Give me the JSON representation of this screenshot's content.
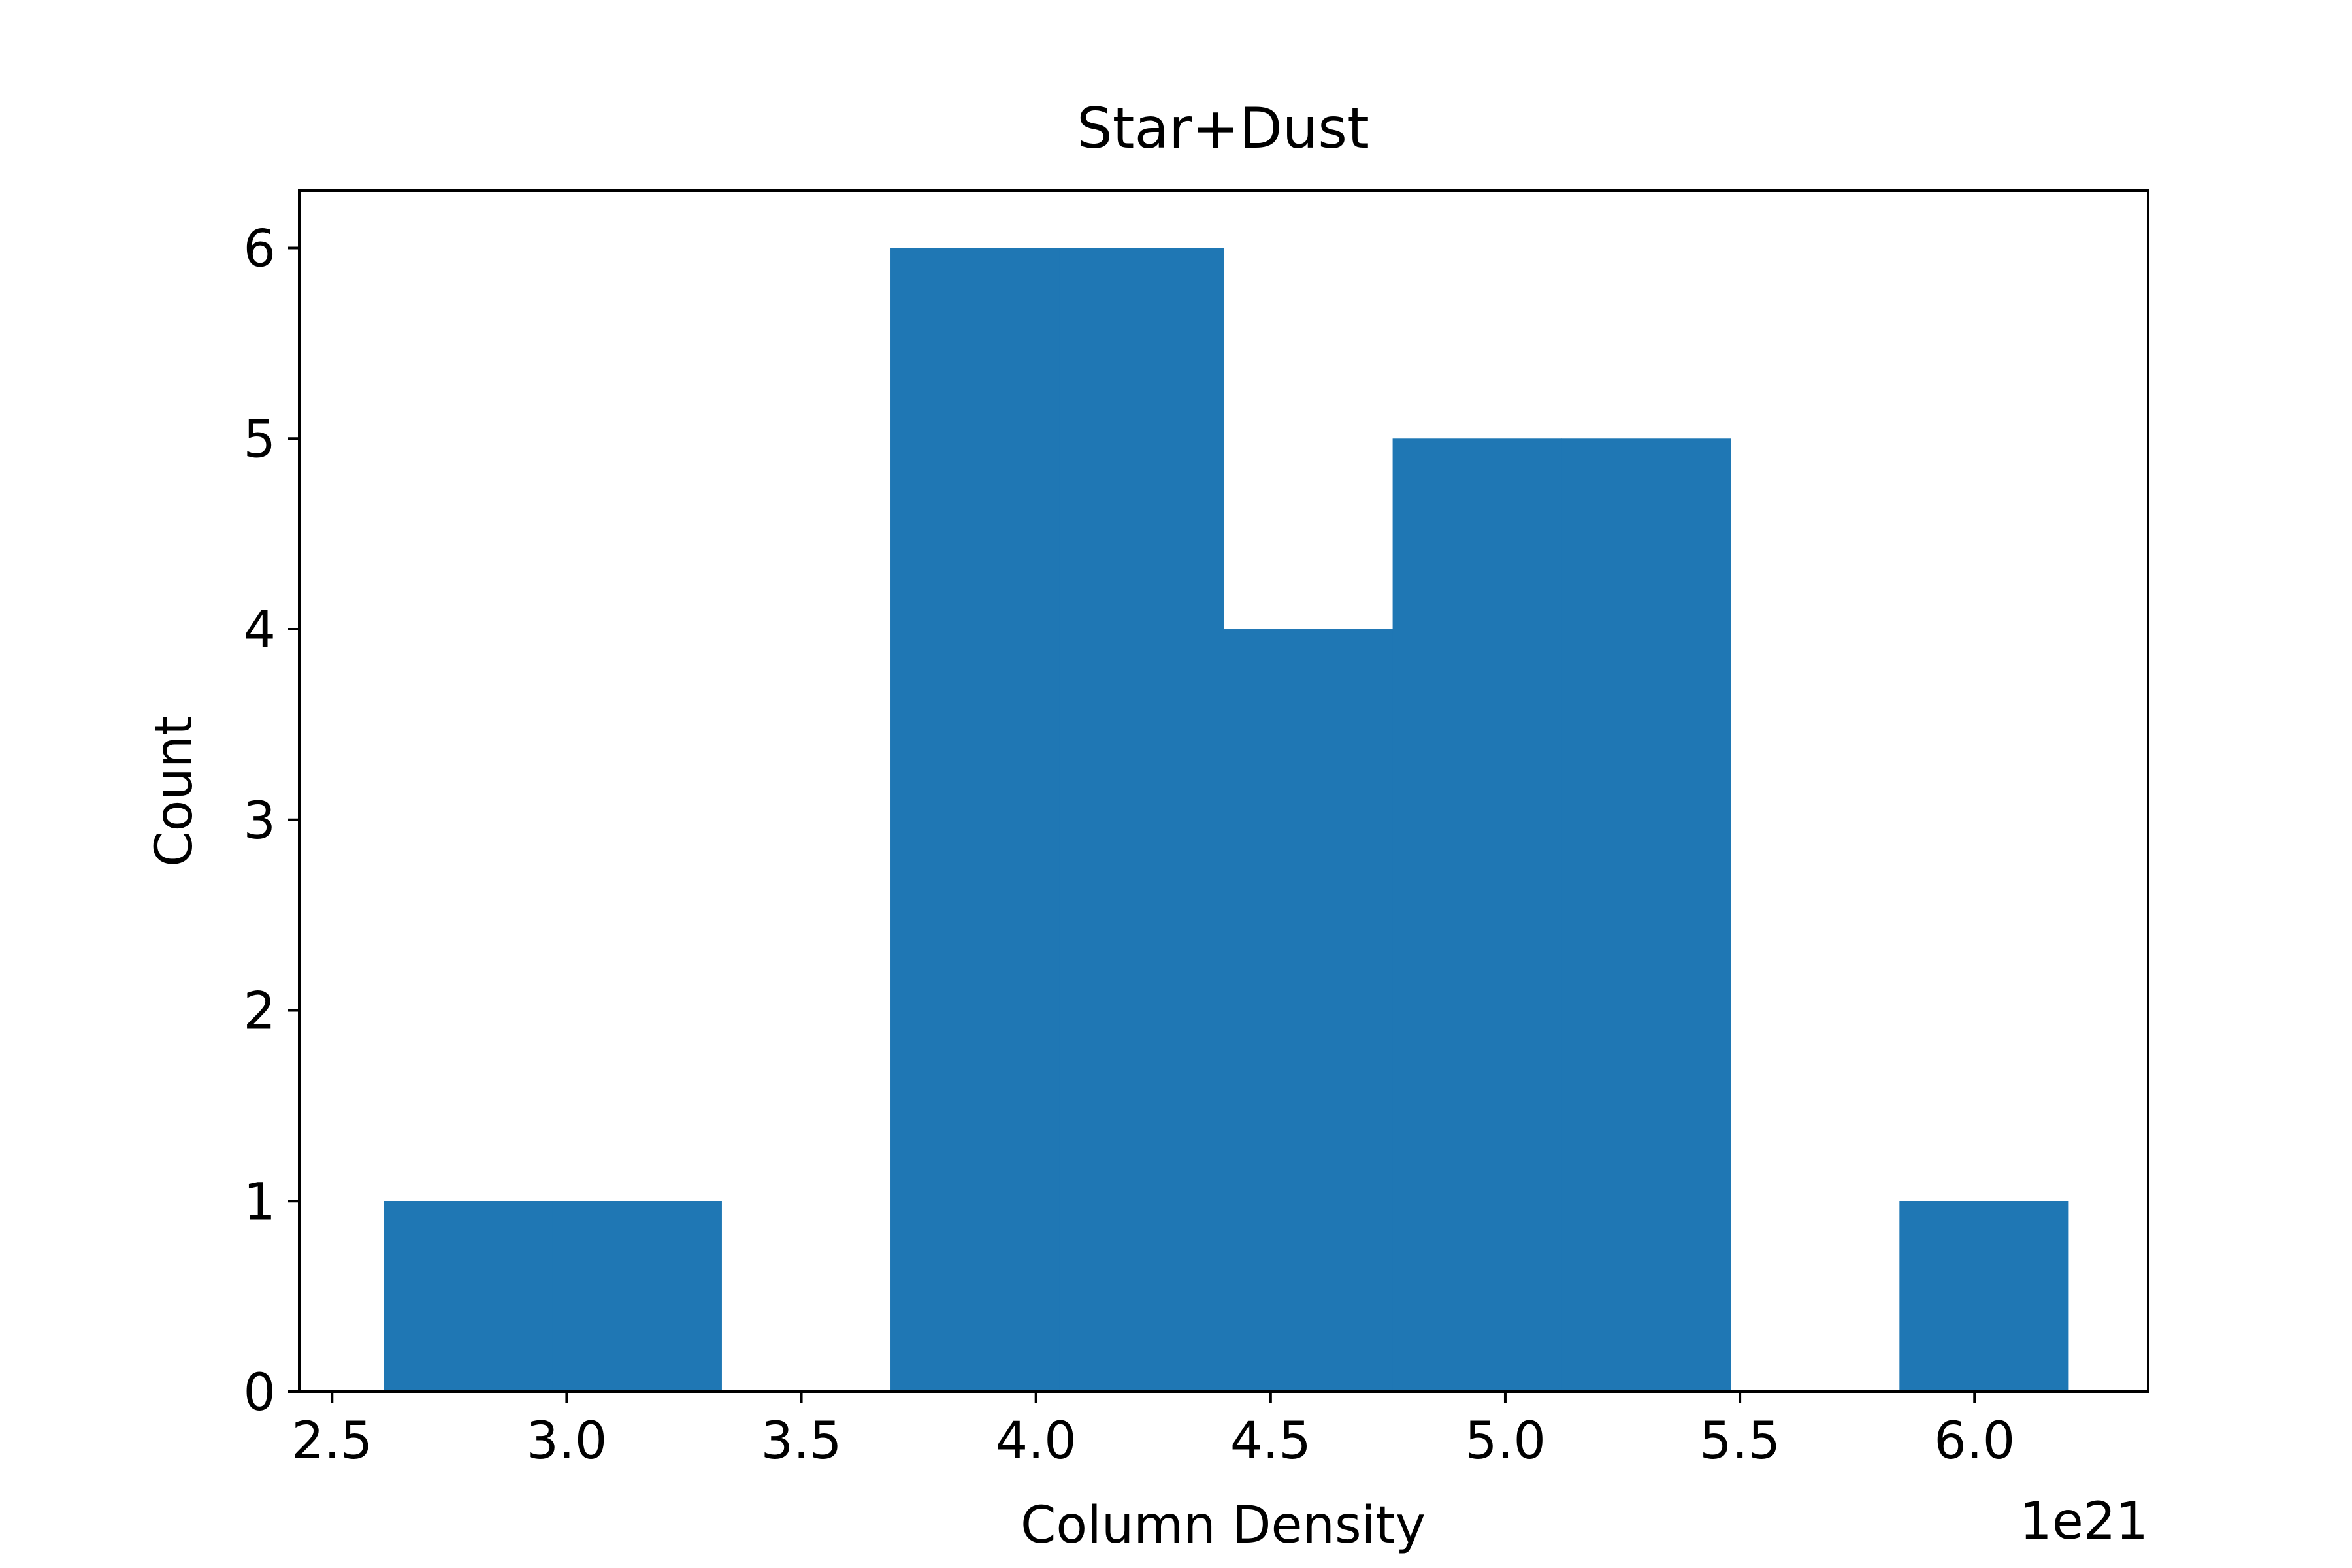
{
  "chart_data": {
    "type": "bar",
    "title": "Star+Dust",
    "xlabel": "Column Density",
    "ylabel": "Count",
    "x_offset_label": "1e21",
    "xlim": [
      2.43,
      6.37
    ],
    "ylim": [
      0,
      6.3
    ],
    "xticks": [
      2.5,
      3.0,
      3.5,
      4.0,
      4.5,
      5.0,
      5.5,
      6.0
    ],
    "xtick_labels": [
      "2.5",
      "3.0",
      "3.5",
      "4.0",
      "4.5",
      "5.0",
      "5.5",
      "6.0"
    ],
    "yticks": [
      0,
      1,
      2,
      3,
      4,
      5,
      6
    ],
    "ytick_labels": [
      "0",
      "1",
      "2",
      "3",
      "4",
      "5",
      "6"
    ],
    "bins": [
      {
        "x0": 2.61,
        "x1": 2.97,
        "count": 1
      },
      {
        "x0": 2.97,
        "x1": 3.33,
        "count": 1
      },
      {
        "x0": 3.33,
        "x1": 3.69,
        "count": 0
      },
      {
        "x0": 3.69,
        "x1": 4.05,
        "count": 6
      },
      {
        "x0": 4.05,
        "x1": 4.4,
        "count": 6
      },
      {
        "x0": 4.4,
        "x1": 4.76,
        "count": 4
      },
      {
        "x0": 4.76,
        "x1": 5.12,
        "count": 5
      },
      {
        "x0": 5.12,
        "x1": 5.48,
        "count": 5
      },
      {
        "x0": 5.48,
        "x1": 5.84,
        "count": 0
      },
      {
        "x0": 5.84,
        "x1": 6.2,
        "count": 1
      }
    ],
    "bar_color": "#1f77b4",
    "grid": false,
    "legend": "none"
  }
}
